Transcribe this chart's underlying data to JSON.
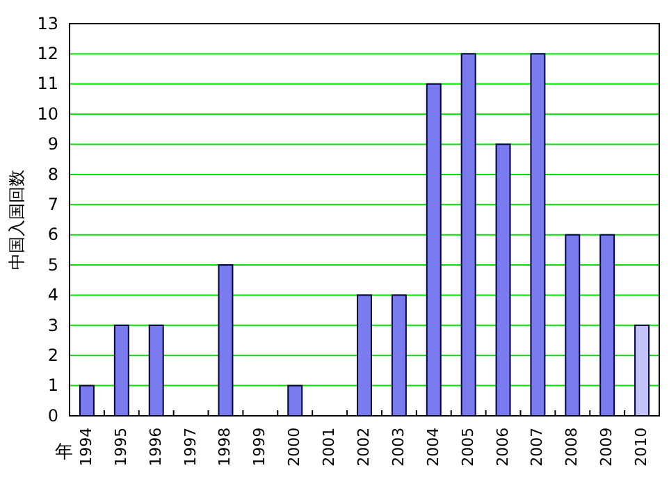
{
  "chart_data": {
    "type": "bar",
    "ylabel": "中国入国回数",
    "xlabel": "年",
    "categories": [
      "1994",
      "1995",
      "1996",
      "1997",
      "1998",
      "1999",
      "2000",
      "2001",
      "2002",
      "2003",
      "2004",
      "2005",
      "2006",
      "2007",
      "2008",
      "2009",
      "2010"
    ],
    "values": [
      1,
      3,
      3,
      0,
      5,
      0,
      1,
      0,
      4,
      4,
      11,
      12,
      9,
      12,
      6,
      6,
      3
    ],
    "colors": [
      "#7b7bf0",
      "#7b7bf0",
      "#7b7bf0",
      "#7b7bf0",
      "#7b7bf0",
      "#7b7bf0",
      "#7b7bf0",
      "#7b7bf0",
      "#7b7bf0",
      "#7b7bf0",
      "#7b7bf0",
      "#7b7bf0",
      "#7b7bf0",
      "#7b7bf0",
      "#7b7bf0",
      "#7b7bf0",
      "#c4c4f8"
    ],
    "ylim": [
      0,
      13
    ],
    "yticks": [
      0,
      1,
      2,
      3,
      4,
      5,
      6,
      7,
      8,
      9,
      10,
      11,
      12,
      13
    ],
    "grid": "y"
  }
}
